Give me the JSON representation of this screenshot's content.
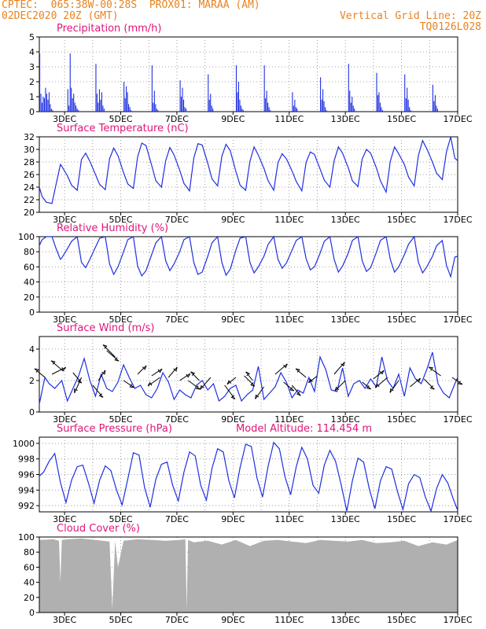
{
  "header": {
    "line1_left": "CPTEC:  065:38W-00:28S  PROX01: MARAA (AM)",
    "line2_left": "02DEC2020 20Z (GMT)",
    "line2_right": "Vertical Grid Line: 20Z",
    "line3_right": "TQ0126L028"
  },
  "colors": {
    "header": "#e8821e",
    "title": "#e0157a",
    "series": "#1f2fe0",
    "cloud": "#b0b0b0",
    "wind_arrow": "#000000"
  },
  "x_ticks": [
    "3DEC",
    "5DEC",
    "7DEC",
    "9DEC",
    "11DEC",
    "13DEC",
    "15DEC",
    "17DEC"
  ],
  "chart_data": [
    {
      "id": "precip",
      "type": "bar",
      "title": "Precipitation (mm/h)",
      "xlim": [
        0,
        14.9
      ],
      "ylim": [
        0,
        5
      ],
      "yticks": [
        0,
        1,
        2,
        3,
        4,
        5
      ],
      "days": [
        [
          3.9,
          1.2,
          0.6,
          1.0,
          0.9,
          1.6,
          1.2,
          0.8,
          1.3,
          0.5,
          0.2,
          0.1
        ],
        [
          1.5,
          0.4,
          3.9,
          1.6,
          0.9,
          1.2,
          0.6,
          0.4,
          0.2,
          0.1,
          0.0,
          0.0
        ],
        [
          3.2,
          1.2,
          0.6,
          1.5,
          0.8,
          1.3,
          0.4,
          0.2,
          0.0,
          0.0,
          0.0,
          0.0
        ],
        [
          2.0,
          0.9,
          1.7,
          1.3,
          0.5,
          0.3,
          0.1,
          0.0,
          0.0,
          0.0,
          0.0,
          0.0
        ],
        [
          3.1,
          0.6,
          1.4,
          0.5,
          0.2,
          0.1,
          0.0,
          0.0,
          0.0,
          0.0,
          0.0,
          0.0
        ],
        [
          2.1,
          1.0,
          1.6,
          0.8,
          0.3,
          0.2,
          0.0,
          0.0,
          0.0,
          0.0,
          0.0,
          0.0
        ],
        [
          2.5,
          0.8,
          1.2,
          0.4,
          0.2,
          0.0,
          0.0,
          0.0,
          0.0,
          0.0,
          0.0,
          0.0
        ],
        [
          3.1,
          1.3,
          2.0,
          0.8,
          0.4,
          0.2,
          0.1,
          0.0,
          0.0,
          0.0,
          0.0,
          0.0
        ],
        [
          3.1,
          0.9,
          1.4,
          0.6,
          0.3,
          0.1,
          0.0,
          0.0,
          0.0,
          0.0,
          0.0,
          0.0
        ],
        [
          1.3,
          0.4,
          0.8,
          0.3,
          0.2,
          0.0,
          0.0,
          0.0,
          0.0,
          0.0,
          0.0,
          0.0
        ],
        [
          2.3,
          0.8,
          1.5,
          0.7,
          0.3,
          0.1,
          0.0,
          0.0,
          0.0,
          0.0,
          0.0,
          0.0
        ],
        [
          3.2,
          1.4,
          0.6,
          1.0,
          0.4,
          0.2,
          0.0,
          0.0,
          0.0,
          0.0,
          0.0,
          0.0
        ],
        [
          2.6,
          1.1,
          1.3,
          0.6,
          0.3,
          0.1,
          0.0,
          0.0,
          0.0,
          0.0,
          0.0,
          0.0
        ],
        [
          2.5,
          0.9,
          1.6,
          0.8,
          0.3,
          0.1,
          0.0,
          0.0,
          0.0,
          0.0,
          0.0,
          0.0
        ],
        [
          1.8,
          0.7,
          1.1,
          0.4,
          0.2,
          0.0,
          0.0,
          0.0,
          0.0,
          0.0,
          0.0,
          0.0
        ]
      ]
    },
    {
      "id": "temp",
      "type": "line",
      "title": "Surface Temperature (nC)",
      "xlim": [
        0,
        14.9
      ],
      "ylim": [
        20,
        32
      ],
      "yticks": [
        20,
        22,
        24,
        26,
        28,
        30,
        32
      ],
      "x": [
        0.0,
        0.1,
        0.25,
        0.45,
        0.6,
        0.75,
        0.8,
        1.0,
        1.15,
        1.35,
        1.5,
        1.65,
        1.8,
        2.0,
        2.15,
        2.35,
        2.5,
        2.65,
        2.8,
        3.0,
        3.15,
        3.35,
        3.5,
        3.65,
        3.8,
        4.0,
        4.15,
        4.35,
        4.5,
        4.65,
        4.8,
        5.0,
        5.15,
        5.35,
        5.5,
        5.65,
        5.8,
        6.0,
        6.15,
        6.35,
        6.5,
        6.65,
        6.8,
        7.0,
        7.15,
        7.35,
        7.5,
        7.65,
        7.8,
        8.0,
        8.15,
        8.35,
        8.5,
        8.65,
        8.8,
        9.0,
        9.15,
        9.35,
        9.5,
        9.65,
        9.8,
        10.0,
        10.15,
        10.35,
        10.5,
        10.65,
        10.8,
        11.0,
        11.15,
        11.35,
        11.5,
        11.65,
        11.8,
        12.0,
        12.15,
        12.35,
        12.5,
        12.65,
        12.8,
        13.0,
        13.15,
        13.35,
        13.5,
        13.65,
        13.8,
        14.0,
        14.15,
        14.35,
        14.5,
        14.65,
        14.8,
        14.9
      ],
      "y": [
        24.0,
        22.5,
        21.6,
        21.4,
        24.5,
        27.6,
        27.3,
        25.8,
        24.3,
        23.5,
        28.4,
        29.4,
        28.1,
        26.0,
        24.4,
        23.6,
        28.5,
        30.2,
        29.0,
        26.3,
        24.5,
        23.8,
        28.8,
        31.0,
        30.6,
        27.5,
        25.0,
        24.0,
        28.2,
        30.3,
        29.1,
        26.7,
        24.6,
        23.4,
        28.6,
        30.9,
        30.7,
        27.8,
        25.3,
        24.2,
        28.9,
        30.8,
        29.8,
        26.5,
        24.3,
        23.5,
        28.1,
        30.4,
        29.1,
        27.0,
        25.0,
        23.5,
        27.9,
        29.3,
        28.5,
        26.6,
        24.9,
        23.4,
        27.9,
        29.6,
        29.2,
        26.9,
        25.1,
        24.0,
        28.2,
        30.4,
        29.4,
        27.1,
        25.0,
        24.1,
        28.5,
        30.0,
        29.4,
        27.1,
        25.0,
        23.2,
        28.1,
        30.4,
        29.3,
        27.6,
        25.6,
        24.2,
        29.0,
        31.4,
        30.1,
        28.0,
        26.2,
        25.2,
        29.6,
        32.0,
        28.6,
        28.2
      ]
    },
    {
      "id": "rh",
      "type": "line",
      "title": "Relative Humidity (%)",
      "xlim": [
        0,
        14.9
      ],
      "ylim": [
        0,
        100
      ],
      "yticks": [
        0,
        20,
        40,
        60,
        80,
        100
      ],
      "x": [
        0.0,
        0.1,
        0.25,
        0.45,
        0.6,
        0.75,
        0.8,
        1.0,
        1.15,
        1.35,
        1.5,
        1.65,
        1.8,
        2.0,
        2.15,
        2.35,
        2.5,
        2.65,
        2.8,
        3.0,
        3.15,
        3.35,
        3.5,
        3.65,
        3.8,
        4.0,
        4.15,
        4.35,
        4.5,
        4.65,
        4.8,
        5.0,
        5.15,
        5.35,
        5.5,
        5.65,
        5.8,
        6.0,
        6.15,
        6.35,
        6.5,
        6.65,
        6.8,
        7.0,
        7.15,
        7.35,
        7.5,
        7.65,
        7.8,
        8.0,
        8.15,
        8.35,
        8.5,
        8.65,
        8.8,
        9.0,
        9.15,
        9.35,
        9.5,
        9.65,
        9.8,
        10.0,
        10.15,
        10.35,
        10.5,
        10.65,
        10.8,
        11.0,
        11.15,
        11.35,
        11.5,
        11.65,
        11.8,
        12.0,
        12.15,
        12.35,
        12.5,
        12.65,
        12.8,
        13.0,
        13.15,
        13.35,
        13.5,
        13.65,
        13.8,
        14.0,
        14.15,
        14.35,
        14.5,
        14.65,
        14.8,
        14.9
      ],
      "y": [
        88,
        96,
        100,
        100,
        84,
        70,
        72,
        84,
        94,
        100,
        66,
        59,
        70,
        86,
        98,
        100,
        64,
        50,
        60,
        80,
        96,
        100,
        61,
        48,
        55,
        76,
        92,
        100,
        68,
        55,
        64,
        80,
        96,
        100,
        66,
        50,
        53,
        74,
        92,
        100,
        66,
        49,
        57,
        82,
        98,
        100,
        66,
        52,
        60,
        74,
        90,
        100,
        70,
        58,
        65,
        82,
        95,
        100,
        71,
        56,
        60,
        78,
        94,
        100,
        70,
        53,
        61,
        78,
        95,
        100,
        68,
        54,
        59,
        79,
        95,
        100,
        70,
        53,
        60,
        76,
        90,
        100,
        66,
        52,
        60,
        74,
        88,
        95,
        62,
        47,
        73,
        74
      ]
    },
    {
      "id": "wind",
      "type": "line",
      "title": "Surface Wind (m/s)",
      "xlim": [
        0,
        14.9
      ],
      "ylim": [
        0,
        4.8
      ],
      "yticks": [
        0,
        2,
        4
      ],
      "x": [
        0.0,
        0.2,
        0.35,
        0.55,
        0.8,
        1.0,
        1.2,
        1.4,
        1.6,
        1.8,
        2.0,
        2.2,
        2.4,
        2.6,
        2.8,
        3.0,
        3.2,
        3.4,
        3.6,
        3.8,
        4.0,
        4.2,
        4.4,
        4.6,
        4.8,
        5.0,
        5.2,
        5.4,
        5.6,
        5.8,
        6.0,
        6.2,
        6.4,
        6.6,
        6.8,
        7.0,
        7.2,
        7.4,
        7.6,
        7.8,
        8.0,
        8.2,
        8.4,
        8.6,
        8.8,
        9.0,
        9.2,
        9.4,
        9.6,
        9.8,
        10.0,
        10.2,
        10.4,
        10.6,
        10.8,
        11.0,
        11.2,
        11.4,
        11.6,
        11.8,
        12.0,
        12.2,
        12.4,
        12.6,
        12.8,
        13.0,
        13.2,
        13.4,
        13.6,
        13.8,
        14.0,
        14.2,
        14.4,
        14.6,
        14.8,
        14.9
      ],
      "y": [
        0.5,
        2.2,
        1.8,
        1.5,
        2.0,
        0.7,
        1.5,
        2.3,
        3.4,
        2.0,
        1.0,
        2.4,
        1.5,
        1.3,
        1.9,
        3.0,
        2.2,
        1.5,
        1.7,
        1.1,
        0.9,
        1.5,
        2.5,
        1.9,
        0.8,
        1.4,
        1.1,
        0.9,
        1.7,
        2.0,
        1.4,
        1.8,
        0.7,
        1.0,
        1.5,
        1.7,
        0.7,
        1.1,
        1.4,
        2.9,
        0.8,
        1.2,
        1.6,
        2.5,
        1.9,
        0.9,
        1.4,
        1.2,
        2.2,
        1.3,
        3.5,
        2.7,
        1.4,
        1.3,
        2.8,
        1.0,
        1.8,
        2.0,
        1.5,
        2.1,
        1.6,
        3.5,
        2.0,
        1.5,
        2.4,
        1.0,
        2.8,
        2.1,
        1.8,
        2.7,
        3.8,
        1.8,
        1.2,
        0.9,
        1.8,
        2.2
      ]
    },
    {
      "id": "pres",
      "type": "line",
      "title": "Surface Pressure (hPa)",
      "xlim": [
        0,
        14.9
      ],
      "ylim": [
        991.2,
        1000.8
      ],
      "yticks": [
        992,
        994,
        996,
        998,
        1000
      ],
      "x": [
        0.0,
        0.15,
        0.35,
        0.55,
        0.75,
        0.95,
        1.15,
        1.35,
        1.55,
        1.75,
        1.95,
        2.15,
        2.35,
        2.55,
        2.75,
        2.95,
        3.15,
        3.35,
        3.55,
        3.75,
        3.95,
        4.15,
        4.35,
        4.55,
        4.75,
        4.95,
        5.15,
        5.35,
        5.55,
        5.75,
        5.95,
        6.15,
        6.35,
        6.55,
        6.75,
        6.95,
        7.15,
        7.35,
        7.55,
        7.75,
        7.95,
        8.15,
        8.35,
        8.55,
        8.75,
        8.95,
        9.15,
        9.35,
        9.55,
        9.75,
        9.95,
        10.15,
        10.35,
        10.55,
        10.75,
        10.95,
        11.15,
        11.35,
        11.55,
        11.75,
        11.95,
        12.15,
        12.35,
        12.55,
        12.75,
        12.95,
        13.15,
        13.35,
        13.55,
        13.75,
        13.95,
        14.15,
        14.35,
        14.55,
        14.75,
        14.9
      ],
      "y": [
        995.8,
        996.3,
        997.7,
        998.7,
        995.0,
        992.4,
        995.3,
        997.0,
        997.2,
        994.9,
        992.3,
        995.3,
        997.1,
        996.5,
        994.0,
        992.1,
        995.4,
        998.8,
        998.5,
        994.3,
        991.8,
        995.4,
        997.3,
        997.6,
        994.6,
        992.6,
        996.3,
        998.9,
        998.4,
        994.6,
        992.7,
        996.8,
        999.3,
        998.9,
        995.2,
        993.0,
        996.9,
        999.9,
        999.6,
        995.6,
        993.1,
        997.1,
        1000.1,
        999.3,
        995.7,
        993.4,
        997.0,
        999.5,
        998.0,
        994.6,
        993.6,
        997.2,
        999.1,
        997.7,
        994.7,
        991.3,
        995.2,
        998.1,
        997.6,
        994.2,
        991.6,
        995.2,
        997.0,
        996.7,
        993.9,
        991.5,
        994.8,
        996.0,
        995.6,
        993.1,
        991.3,
        994.2,
        996.0,
        994.9,
        992.8,
        991.4
      ]
    },
    {
      "id": "cloud",
      "type": "area",
      "title": "Cloud Cover (%)",
      "xlim": [
        0,
        14.9
      ],
      "ylim": [
        0,
        100
      ],
      "yticks": [
        0,
        20,
        40,
        60,
        80,
        100
      ],
      "x": [
        0.0,
        0.5,
        0.7,
        0.75,
        0.8,
        1.0,
        1.5,
        2.0,
        2.5,
        2.6,
        2.7,
        2.8,
        3.0,
        3.5,
        4.0,
        4.5,
        5.0,
        5.2,
        5.25,
        5.3,
        5.5,
        6.0,
        6.5,
        7.0,
        7.5,
        8.0,
        8.5,
        9.0,
        9.5,
        10.0,
        10.5,
        11.0,
        11.5,
        12.0,
        12.5,
        13.0,
        13.5,
        14.0,
        14.5,
        14.9
      ],
      "y": [
        96,
        97,
        95,
        40,
        96,
        97,
        98,
        96,
        94,
        5,
        95,
        60,
        95,
        97,
        96,
        95,
        96,
        97,
        5,
        96,
        93,
        95,
        90,
        96,
        88,
        95,
        96,
        94,
        92,
        96,
        95,
        94,
        96,
        92,
        93,
        95,
        88,
        93,
        90,
        96
      ]
    },
    {
      "id": "wind_vectors",
      "type": "scatter",
      "x": [
        0.2,
        0.45,
        0.85,
        1.2,
        1.5,
        1.9,
        2.1,
        2.4,
        2.7,
        3.0,
        3.5,
        4.0,
        4.3,
        4.6,
        5.0,
        5.3,
        5.7,
        6.1,
        6.6,
        7.0,
        7.3,
        7.6,
        8.0,
        8.4,
        8.7,
        9.0,
        9.5,
        9.9,
        10.5,
        10.9,
        11.5,
        11.9,
        12.4,
        12.8,
        13.2,
        13.7,
        14.3,
        14.7
      ],
      "y": [
        2.2,
        2.4,
        2.6,
        2.5,
        2.2,
        1.7,
        2.0,
        3.9,
        3.5,
        2.0,
        2.4,
        2.3,
        2.2,
        2.2,
        2.0,
        2.0,
        2.0,
        2.2,
        1.7,
        2.2,
        2.3,
        2.0,
        1.6,
        2.4,
        1.9,
        1.7,
        2.2,
        2.3,
        2.4,
        2.0,
        1.9,
        2.1,
        2.2,
        2.0,
        1.6,
        2.1,
        2.3,
        2.2
      ],
      "u": [
        -0.6,
        0.8,
        -0.7,
        0.5,
        -0.4,
        0.6,
        0.4,
        0.7,
        -0.7,
        0.6,
        0.5,
        0.6,
        -0.7,
        0.5,
        0.6,
        0.7,
        -0.5,
        -0.6,
        0.6,
        -0.5,
        0.6,
        -0.4,
        -0.5,
        0.7,
        0.6,
        0.5,
        -0.6,
        -0.5,
        0.6,
        -0.6,
        0.5,
        0.6,
        -0.7,
        -0.5,
        0.6,
        0.6,
        -0.7,
        0.6
      ],
      "v": [
        0.5,
        0.4,
        0.6,
        -0.6,
        -0.9,
        -0.7,
        0.6,
        -0.6,
        0.7,
        -0.4,
        0.5,
        0.4,
        -0.5,
        0.6,
        0.4,
        -0.5,
        0.5,
        -0.7,
        -0.8,
        -0.4,
        -0.6,
        0.5,
        -0.7,
        0.6,
        -0.5,
        -0.6,
        0.5,
        -0.4,
        0.7,
        -0.6,
        -0.4,
        0.5,
        -0.6,
        -0.7,
        0.5,
        -0.6,
        0.5,
        -0.4
      ]
    }
  ],
  "pressure_extra": "Model Altitude: 114.454 m"
}
